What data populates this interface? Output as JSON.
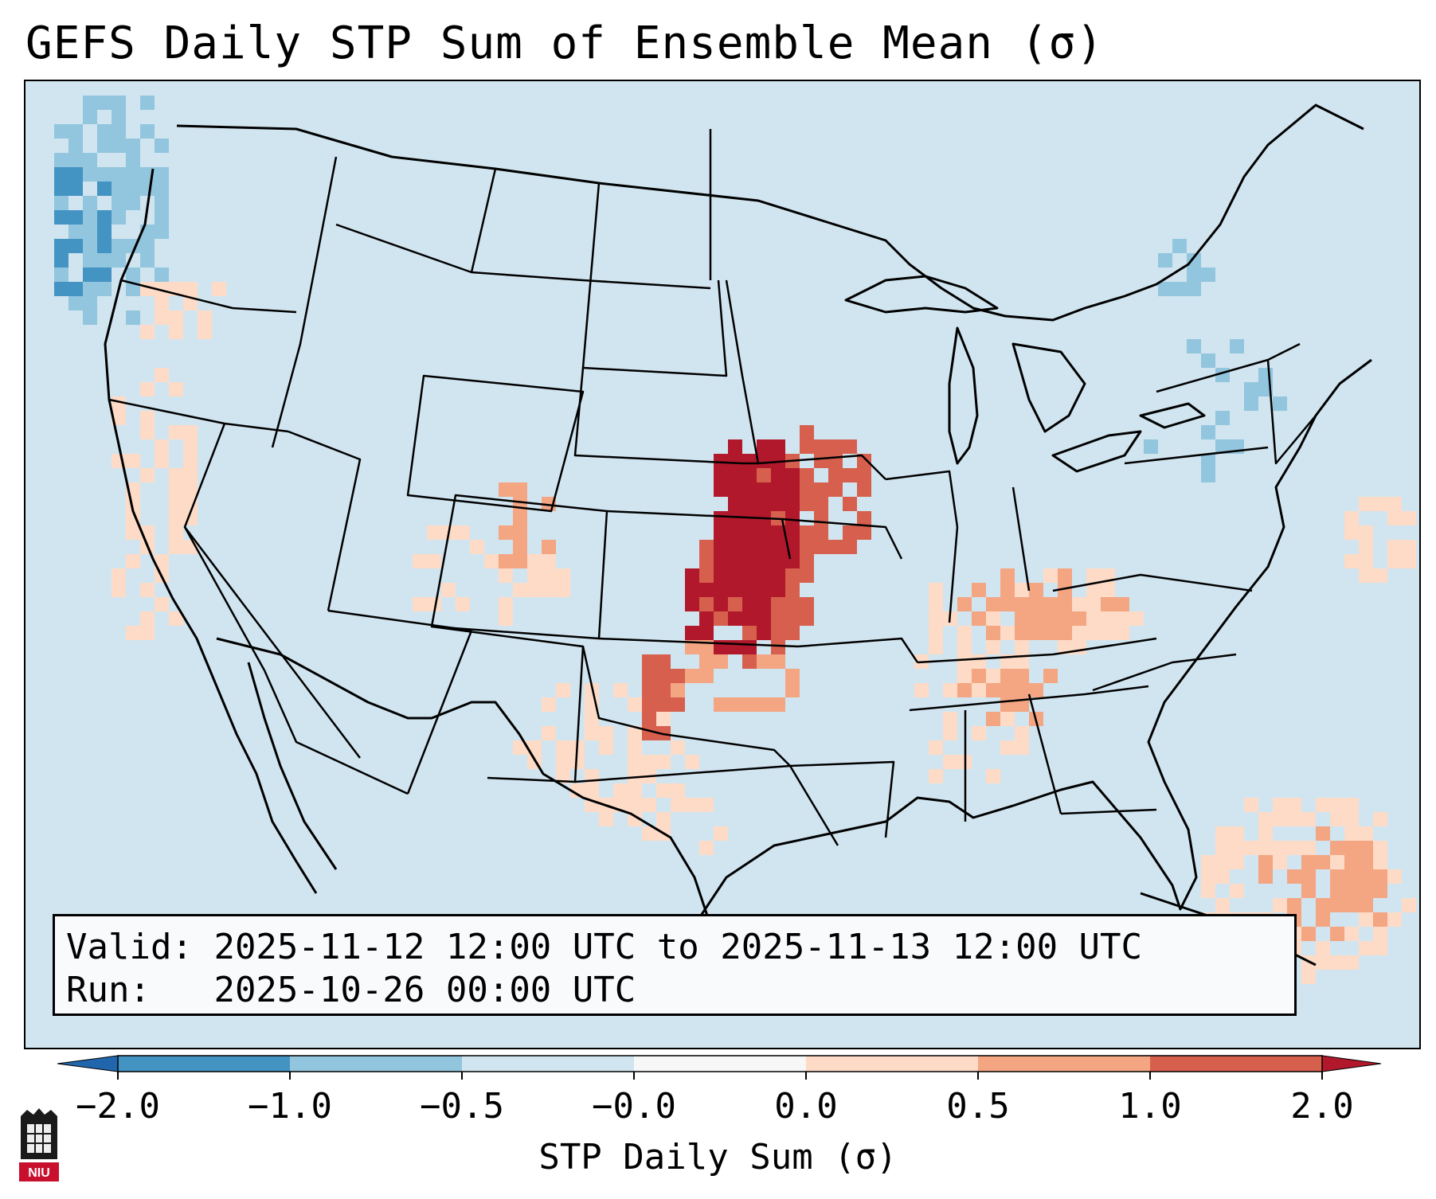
{
  "title": "GEFS Daily STP Sum of Ensemble Mean (σ)",
  "info": {
    "valid_label": "Valid:",
    "valid_value": "2025-11-12 12:00 UTC to 2025-11-13 12:00 UTC",
    "run_label": "Run:",
    "run_value": "2025-10-26 00:00 UTC"
  },
  "colorbar": {
    "label": "STP Daily Sum (σ)",
    "ticks": [
      "−2.0",
      "−1.0",
      "−0.5",
      "−0.0",
      "0.0",
      "0.5",
      "1.0",
      "2.0"
    ],
    "bins": [
      {
        "from": -2.0,
        "to": -1.0,
        "color": "#4393c3"
      },
      {
        "from": -1.0,
        "to": -0.5,
        "color": "#92c5de"
      },
      {
        "from": -0.5,
        "to": -0.0,
        "color": "#d1e5f0"
      },
      {
        "from": -0.0,
        "to": 0.0,
        "color": "#f7f7f7"
      },
      {
        "from": 0.0,
        "to": 0.5,
        "color": "#fddbc7"
      },
      {
        "from": 0.5,
        "to": 1.0,
        "color": "#f4a582"
      },
      {
        "from": 1.0,
        "to": 2.0,
        "color": "#d6604d"
      }
    ],
    "under_color": "#2166ac",
    "over_color": "#b2182b"
  },
  "map": {
    "background_color": "#d1e5f0",
    "region": "CONUS"
  },
  "logo": {
    "text": "NIU"
  }
}
